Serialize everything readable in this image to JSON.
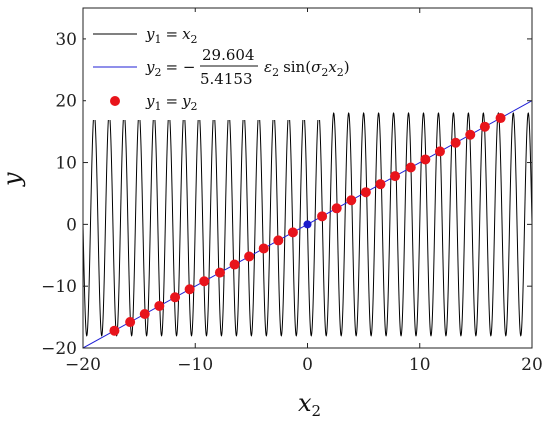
{
  "chart_data": {
    "type": "line",
    "xlabel": "x",
    "xlabel_sub": "2",
    "ylabel": "y",
    "xlim": [
      -20,
      20
    ],
    "ylim": [
      -20,
      35
    ],
    "xticks": [
      -20,
      -10,
      0,
      10,
      20
    ],
    "yticks": [
      -20,
      -10,
      0,
      10,
      20,
      30
    ],
    "xtick_labels": [
      "−20",
      "−10",
      "0",
      "10",
      "20"
    ],
    "ytick_labels": [
      "−20",
      "−10",
      "0",
      "10",
      "20",
      "30"
    ],
    "grid": false,
    "legend_position": "top-left",
    "series": [
      {
        "name": "y1 = x2",
        "kind": "line",
        "color": "#000000",
        "function": "identity",
        "x_range": [
          -20,
          20
        ]
      },
      {
        "name": "y2 = −(29.604 / 5.4153) ε2 sin(σ2 x2)",
        "kind": "line",
        "color": "#1f1fd6",
        "amplitude": 18,
        "half_periods_per_unit": 1.5,
        "x_range": [
          -20,
          20
        ]
      },
      {
        "name": "y1 = y2",
        "kind": "scatter",
        "color": "#e8141b",
        "x": [
          -17.2,
          -15.8,
          -14.5,
          -13.2,
          -11.8,
          -10.5,
          -9.2,
          -7.8,
          -6.5,
          -5.2,
          -3.9,
          -2.6,
          -1.3,
          1.3,
          2.6,
          3.9,
          5.2,
          6.5,
          7.8,
          9.2,
          10.5,
          11.8,
          13.2,
          14.5,
          15.8,
          17.2
        ],
        "y": [
          -17.2,
          -15.8,
          -14.5,
          -13.2,
          -11.8,
          -10.5,
          -9.2,
          -7.8,
          -6.5,
          -5.2,
          -3.9,
          -2.6,
          -1.3,
          1.3,
          2.6,
          3.9,
          5.2,
          6.5,
          7.8,
          9.2,
          10.5,
          11.8,
          13.2,
          14.5,
          15.8,
          17.2
        ]
      }
    ],
    "origin_point": {
      "x": 0,
      "y": 0,
      "color": "#1a1acc"
    }
  },
  "legend": {
    "e1": {
      "lhs": "y",
      "lhs_sub": "1",
      "eq": "=",
      "rhs": "x",
      "rhs_sub": "2"
    },
    "e2": {
      "lhs": "y",
      "lhs_sub": "2",
      "eq": "= −",
      "num": "29.604",
      "den": "5.4153",
      "eps": "ε",
      "eps_sub": "2",
      "sin": "sin(",
      "sigma": "σ",
      "sigma_sub": "2",
      "x": "x",
      "x_sub": "2",
      "close": ")"
    },
    "e3": {
      "lhs": "y",
      "lhs_sub": "1",
      "eq": "=",
      "rhs": "y",
      "rhs_sub": "2"
    }
  }
}
